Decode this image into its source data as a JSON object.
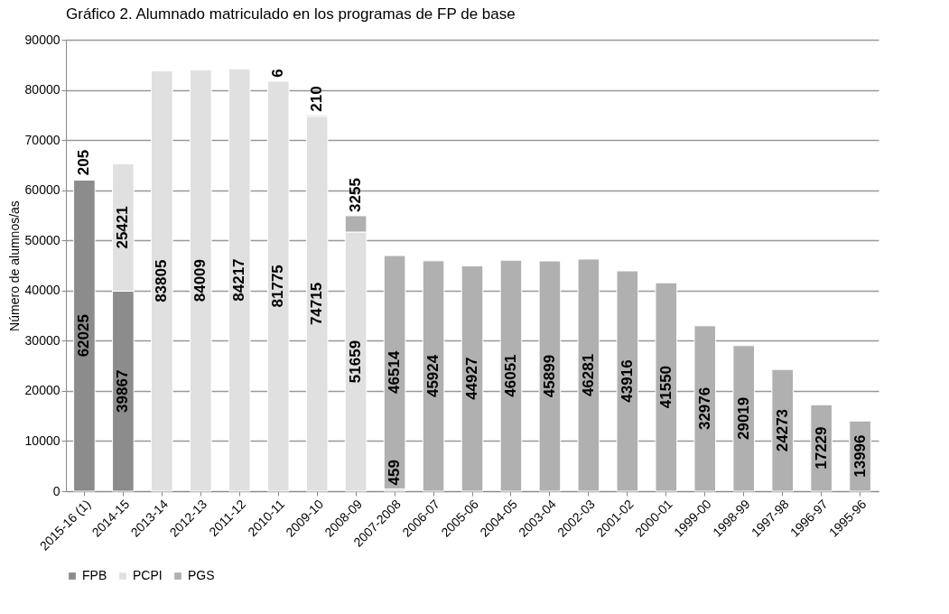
{
  "chart_data": {
    "type": "bar",
    "title": "Gráfico 2. Alumnado matriculado en los programas de FP de base",
    "ylabel": "Número de alumnos/as",
    "categories": [
      "2015-16 (1)",
      "2014-15",
      "2013-14",
      "2012-13",
      "2011-12",
      "2010-11",
      "2009-10",
      "2008-09",
      "2007-2008",
      "2006-07",
      "2005-06",
      "2004-05",
      "2003-04",
      "2002-03",
      "2001-02",
      "2000-01",
      "1999-00",
      "1998-99",
      "1997-98",
      "1996-97",
      "1995-96"
    ],
    "stacked": true,
    "data_labels": true,
    "grid": "y",
    "legend": "bottom",
    "ylim": [
      0,
      90000
    ],
    "yticks": [
      0,
      10000,
      20000,
      30000,
      40000,
      50000,
      60000,
      70000,
      80000,
      90000
    ],
    "series": [
      {
        "name": "FPB",
        "color": "#8c8c8c",
        "values": [
          62025,
          39867,
          null,
          null,
          null,
          null,
          null,
          null,
          null,
          null,
          null,
          null,
          null,
          null,
          null,
          null,
          null,
          null,
          null,
          null,
          null
        ]
      },
      {
        "name": "PCPI",
        "color": "#e0e0e0",
        "values": [
          205,
          25421,
          83805,
          84009,
          84217,
          81775,
          74715,
          51659,
          459,
          null,
          null,
          null,
          null,
          null,
          null,
          null,
          null,
          null,
          null,
          null,
          null
        ]
      },
      {
        "name": "PGS",
        "color": "#b0b0b0",
        "values": [
          null,
          null,
          null,
          null,
          null,
          6,
          210,
          3255,
          46514,
          45924,
          44927,
          46051,
          45899,
          46281,
          43916,
          41550,
          32976,
          29019,
          24273,
          17229,
          13996
        ]
      }
    ]
  }
}
